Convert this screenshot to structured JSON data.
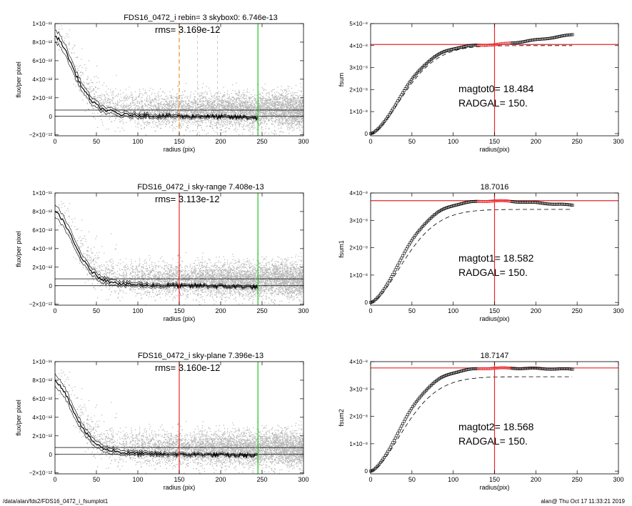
{
  "footer": {
    "path": "/data/alan/fds2/FDS16_0472_i_fsumplot1",
    "stamp": "alan@  Thu Oct 17 11:33:21 2019"
  },
  "colors": {
    "scatter": "#b4b4b4",
    "red": "#e8262a",
    "green": "#22c322",
    "orange": "#f0901e",
    "axis": "#000000"
  },
  "chart_data": [
    {
      "id": "p1",
      "type": "scatter",
      "title": "FDS16_0472_i rebin= 3    skybox0:  6.746e-13",
      "annotation": "rms= 3.169e-12",
      "xlabel": "radius (pix)",
      "ylabel": "flux/per pixel",
      "xlim": [
        0,
        300
      ],
      "ylim": [
        -2.1e-12,
        1e-11
      ],
      "xticks": [
        0,
        50,
        100,
        150,
        200,
        250,
        300
      ],
      "xticklabels": [
        "0",
        "50",
        "100",
        "150",
        "200",
        "250",
        "300"
      ],
      "yticks": [
        -2e-12,
        0,
        2e-12,
        4e-12,
        6e-12,
        8e-12,
        1e-11
      ],
      "yticklabels": [
        "−2×10⁻¹²",
        "0",
        "2×10⁻¹²",
        "4×10⁻¹²",
        "6×10⁻¹²",
        "8×10⁻¹²",
        "1×10⁻¹¹"
      ],
      "hlines": [
        0,
        6.746e-13
      ],
      "vlines": [
        {
          "x": 150,
          "color": "orange",
          "dash": true
        },
        {
          "x": 245,
          "color": "green",
          "dash": false
        }
      ],
      "profile": {
        "x": [
          0,
          5,
          10,
          15,
          20,
          25,
          30,
          35,
          40,
          45,
          50,
          55,
          60,
          65,
          70,
          75,
          80,
          90,
          100,
          110,
          120,
          130,
          140,
          150,
          160,
          170,
          180,
          190,
          200,
          210,
          220,
          230,
          245
        ],
        "y": [
          8.6e-12,
          8.3e-12,
          7.6e-12,
          6.6e-12,
          5.6e-12,
          4.5e-12,
          3.6e-12,
          2.8e-12,
          2.2e-12,
          1.6e-12,
          1.2e-12,
          9e-13,
          7e-13,
          5e-13,
          6e-13,
          3e-13,
          2e-13,
          1.5e-13,
          1e-13,
          1e-13,
          5e-14,
          0.0,
          5e-14,
          0.0,
          -5e-14,
          0.0,
          0.0,
          -5e-14,
          -5e-14,
          -1e-13,
          -1e-13,
          -1e-13,
          -1.5e-13
        ]
      }
    },
    {
      "id": "p2",
      "type": "line",
      "title": "",
      "xlabel": "radius(pix)",
      "ylabel": "fsum",
      "xlim": [
        0,
        300
      ],
      "ylim": [
        -1e-09,
        5e-08
      ],
      "xticks": [
        0,
        50,
        100,
        150,
        200,
        250,
        300
      ],
      "xticklabels": [
        "0",
        "50",
        "100",
        "150",
        "200",
        "250",
        "300"
      ],
      "yticks": [
        0,
        1e-08,
        2e-08,
        3e-08,
        4e-08,
        5e-08
      ],
      "yticklabels": [
        "0",
        "1×10⁻⁸",
        "2×10⁻⁸",
        "3×10⁻⁸",
        "4×10⁻⁸",
        "5×10⁻⁸"
      ],
      "hline": 4.05e-08,
      "vline": 150,
      "annotations": [
        "magtot0=  18.484",
        "RADGAL=    150."
      ],
      "curve_plateau": 4.05e-08,
      "curve_end": 4.5e-08,
      "dashed_plateau": 4e-08
    },
    {
      "id": "p3",
      "type": "scatter",
      "title": "FDS16_0472_i sky-range  7.408e-13",
      "annotation": "rms= 3.113e-12",
      "xlabel": "radius (pix)",
      "ylabel": "flux/per pixel",
      "xlim": [
        0,
        300
      ],
      "ylim": [
        -2.1e-12,
        1e-11
      ],
      "xticks": [
        0,
        50,
        100,
        150,
        200,
        250,
        300
      ],
      "xticklabels": [
        "0",
        "50",
        "100",
        "150",
        "200",
        "250",
        "300"
      ],
      "yticks": [
        -2e-12,
        0,
        2e-12,
        4e-12,
        6e-12,
        8e-12,
        1e-11
      ],
      "yticklabels": [
        "−2×10⁻¹²",
        "0",
        "2×10⁻¹²",
        "4×10⁻¹²",
        "6×10⁻¹²",
        "8×10⁻¹²",
        "1×10⁻¹¹"
      ],
      "hlines": [
        0,
        7.408e-13
      ],
      "vlines": [
        {
          "x": 150,
          "color": "red",
          "dash": false
        },
        {
          "x": 245,
          "color": "green",
          "dash": false
        }
      ],
      "profile": {
        "x": [
          0,
          5,
          10,
          15,
          20,
          25,
          30,
          35,
          40,
          45,
          50,
          55,
          60,
          65,
          70,
          75,
          80,
          90,
          100,
          110,
          120,
          130,
          140,
          150,
          160,
          170,
          180,
          190,
          200,
          210,
          220,
          230,
          245
        ],
        "y": [
          7.9e-12,
          7.6e-12,
          7e-12,
          6.1e-12,
          5.2e-12,
          4.2e-12,
          3.4e-12,
          2.6e-12,
          2e-12,
          1.5e-12,
          1.1e-12,
          8e-13,
          6e-13,
          4e-13,
          5e-13,
          3e-13,
          2e-13,
          1.5e-13,
          1e-13,
          5e-14,
          5e-14,
          0.0,
          5e-14,
          0.0,
          -5e-14,
          0.0,
          0.0,
          -5e-14,
          -5e-14,
          -1e-13,
          -1e-13,
          -1e-13,
          -1.5e-13
        ]
      }
    },
    {
      "id": "p4",
      "type": "line",
      "title": "18.7016",
      "xlabel": "radius(pix)",
      "ylabel": "fsum1",
      "xlim": [
        0,
        300
      ],
      "ylim": [
        -1e-09,
        4e-08
      ],
      "xticks": [
        0,
        50,
        100,
        150,
        200,
        250,
        300
      ],
      "xticklabels": [
        "0",
        "50",
        "100",
        "150",
        "200",
        "250",
        "300"
      ],
      "yticks": [
        0,
        1e-08,
        2e-08,
        3e-08,
        4e-08
      ],
      "yticklabels": [
        "0",
        "1×10⁻⁸",
        "2×10⁻⁸",
        "3×10⁻⁸",
        "4×10⁻⁸"
      ],
      "hline": 3.72e-08,
      "vline": 150,
      "annotations": [
        "magtot1=  18.582",
        "RADGAL=    150."
      ],
      "curve_plateau": 3.72e-08,
      "curve_end": 3.55e-08,
      "dashed_plateau": 3.4e-08
    },
    {
      "id": "p5",
      "type": "scatter",
      "title": "FDS16_0472_i sky-plane  7.396e-13",
      "annotation": "rms= 3.160e-12",
      "xlabel": "radius (pix)",
      "ylabel": "flux/per pixel",
      "xlim": [
        0,
        300
      ],
      "ylim": [
        -2.1e-12,
        1e-11
      ],
      "xticks": [
        0,
        50,
        100,
        150,
        200,
        250,
        300
      ],
      "xticklabels": [
        "0",
        "50",
        "100",
        "150",
        "200",
        "250",
        "300"
      ],
      "yticks": [
        -2e-12,
        0,
        2e-12,
        4e-12,
        6e-12,
        8e-12,
        1e-11
      ],
      "yticklabels": [
        "−2×10⁻¹²",
        "0",
        "2×10⁻¹²",
        "4×10⁻¹²",
        "6×10⁻¹²",
        "8×10⁻¹²",
        "1×10⁻¹¹"
      ],
      "hlines": [
        0,
        7.396e-13
      ],
      "vlines": [
        {
          "x": 150,
          "color": "red",
          "dash": false
        },
        {
          "x": 245,
          "color": "green",
          "dash": false
        }
      ],
      "profile": {
        "x": [
          0,
          5,
          10,
          15,
          20,
          25,
          30,
          35,
          40,
          45,
          50,
          55,
          60,
          65,
          70,
          75,
          80,
          90,
          100,
          110,
          120,
          130,
          140,
          150,
          160,
          170,
          180,
          190,
          200,
          210,
          220,
          230,
          245
        ],
        "y": [
          7.9e-12,
          7.6e-12,
          7e-12,
          6.1e-12,
          5.2e-12,
          4.2e-12,
          3.4e-12,
          2.6e-12,
          2e-12,
          1.5e-12,
          1.1e-12,
          8e-13,
          6e-13,
          4e-13,
          5e-13,
          3e-13,
          2e-13,
          1.5e-13,
          1e-13,
          5e-14,
          5e-14,
          0.0,
          5e-14,
          0.0,
          -5e-14,
          0.0,
          0.0,
          -5e-14,
          -5e-14,
          -1e-13,
          -1e-13,
          -1e-13,
          -1.5e-13
        ]
      }
    },
    {
      "id": "p6",
      "type": "line",
      "title": "18.7147",
      "xlabel": "radius(pix)",
      "ylabel": "fsum2",
      "xlim": [
        0,
        300
      ],
      "ylim": [
        -1e-09,
        4e-08
      ],
      "xticks": [
        0,
        50,
        100,
        150,
        200,
        250,
        300
      ],
      "xticklabels": [
        "0",
        "50",
        "100",
        "150",
        "200",
        "250",
        "300"
      ],
      "yticks": [
        0,
        1e-08,
        2e-08,
        3e-08,
        4e-08
      ],
      "yticklabels": [
        "0",
        "1×10⁻⁸",
        "2×10⁻⁸",
        "3×10⁻⁸",
        "4×10⁻⁸"
      ],
      "hline": 3.77e-08,
      "vline": 150,
      "annotations": [
        "magtot2=  18.568",
        "RADGAL=    150."
      ],
      "curve_plateau": 3.77e-08,
      "curve_end": 3.72e-08,
      "dashed_plateau": 3.45e-08
    }
  ]
}
